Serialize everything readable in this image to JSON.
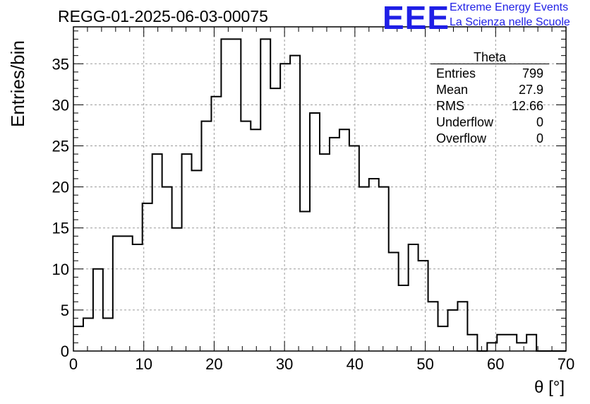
{
  "title": "REGG-01-2025-06-03-00075",
  "logo": {
    "mark": "EEE",
    "line1": "Extreme Energy Events",
    "line2": "La Scienza nelle Scuole",
    "color": "#1f1fe6"
  },
  "stats": {
    "title": "Theta",
    "rows": [
      {
        "label": "Entries",
        "value": "799"
      },
      {
        "label": "Mean",
        "value": "27.9"
      },
      {
        "label": "RMS",
        "value": "12.66"
      },
      {
        "label": "Underflow",
        "value": "0"
      },
      {
        "label": "Overflow",
        "value": "0"
      }
    ]
  },
  "chart_data": {
    "type": "bar",
    "histogram": true,
    "xlabel": "θ [°]",
    "ylabel": "Entries/bin",
    "xlim": [
      0,
      70
    ],
    "ylim": [
      0,
      39.5
    ],
    "bin_width": 1.4,
    "x_ticks": [
      0,
      10,
      20,
      30,
      40,
      50,
      60,
      70
    ],
    "y_ticks": [
      0,
      5,
      10,
      15,
      20,
      25,
      30,
      35
    ],
    "grid": true,
    "line_color": "#000000",
    "values": [
      3,
      4,
      10,
      4,
      14,
      14,
      13,
      18,
      24,
      20,
      15,
      24,
      22,
      28,
      31,
      38,
      38,
      28,
      27,
      38,
      32,
      35,
      36,
      17,
      29,
      24,
      26,
      27,
      25,
      20,
      21,
      20,
      12,
      8,
      13,
      11,
      6,
      3,
      5,
      6,
      2,
      0,
      1,
      2,
      2,
      1,
      2,
      0,
      0,
      0
    ]
  }
}
